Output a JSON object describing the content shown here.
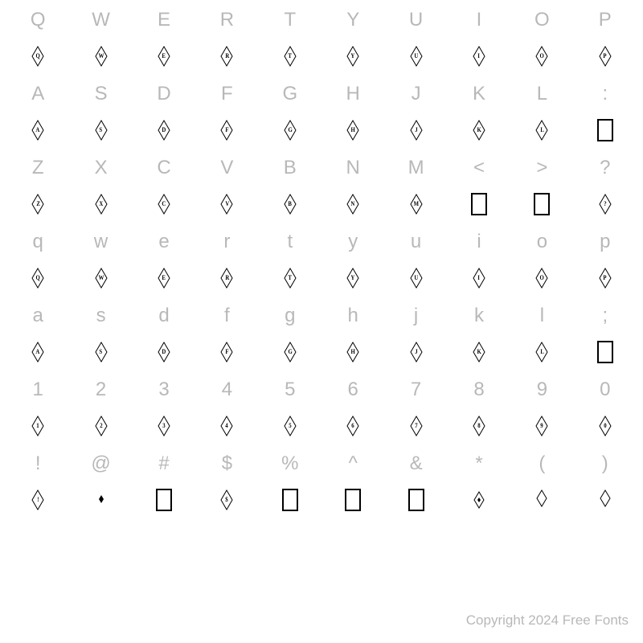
{
  "copyright": "Copyright 2024 Free Fonts",
  "glyph_font_letter_color": "#000000",
  "label_color": "#b8b8b8",
  "background": "#ffffff",
  "rows": [
    {
      "labels": [
        "Q",
        "W",
        "E",
        "R",
        "T",
        "Y",
        "U",
        "I",
        "O",
        "P"
      ],
      "glyphs": [
        {
          "t": "d",
          "l": "Q"
        },
        {
          "t": "d",
          "l": "W"
        },
        {
          "t": "d",
          "l": "E"
        },
        {
          "t": "d",
          "l": "R"
        },
        {
          "t": "d",
          "l": "T"
        },
        {
          "t": "d",
          "l": "Y"
        },
        {
          "t": "d",
          "l": "U"
        },
        {
          "t": "d",
          "l": "I"
        },
        {
          "t": "d",
          "l": "O"
        },
        {
          "t": "d",
          "l": "P"
        }
      ]
    },
    {
      "labels": [
        "A",
        "S",
        "D",
        "F",
        "G",
        "H",
        "J",
        "K",
        "L",
        ":"
      ],
      "glyphs": [
        {
          "t": "d",
          "l": "A"
        },
        {
          "t": "d",
          "l": "S"
        },
        {
          "t": "d",
          "l": "D"
        },
        {
          "t": "d",
          "l": "F"
        },
        {
          "t": "d",
          "l": "G"
        },
        {
          "t": "d",
          "l": "H"
        },
        {
          "t": "d",
          "l": "J"
        },
        {
          "t": "d",
          "l": "K"
        },
        {
          "t": "d",
          "l": "L"
        },
        {
          "t": "box"
        }
      ]
    },
    {
      "labels": [
        "Z",
        "X",
        "C",
        "V",
        "B",
        "N",
        "M",
        "<",
        ">",
        "?"
      ],
      "glyphs": [
        {
          "t": "d",
          "l": "Z"
        },
        {
          "t": "d",
          "l": "X"
        },
        {
          "t": "d",
          "l": "C"
        },
        {
          "t": "d",
          "l": "V"
        },
        {
          "t": "d",
          "l": "B"
        },
        {
          "t": "d",
          "l": "N"
        },
        {
          "t": "d",
          "l": "M"
        },
        {
          "t": "box"
        },
        {
          "t": "box"
        },
        {
          "t": "d",
          "l": "?"
        }
      ]
    },
    {
      "labels": [
        "q",
        "w",
        "e",
        "r",
        "t",
        "y",
        "u",
        "i",
        "o",
        "p"
      ],
      "glyphs": [
        {
          "t": "d",
          "l": "Q"
        },
        {
          "t": "d",
          "l": "W"
        },
        {
          "t": "d",
          "l": "E"
        },
        {
          "t": "d",
          "l": "R"
        },
        {
          "t": "d",
          "l": "T"
        },
        {
          "t": "d",
          "l": "Y"
        },
        {
          "t": "d",
          "l": "U"
        },
        {
          "t": "d",
          "l": "I"
        },
        {
          "t": "d",
          "l": "O"
        },
        {
          "t": "d",
          "l": "P"
        }
      ]
    },
    {
      "labels": [
        "a",
        "s",
        "d",
        "f",
        "g",
        "h",
        "j",
        "k",
        "l",
        ";"
      ],
      "glyphs": [
        {
          "t": "d",
          "l": "A"
        },
        {
          "t": "d",
          "l": "S"
        },
        {
          "t": "d",
          "l": "D"
        },
        {
          "t": "d",
          "l": "F"
        },
        {
          "t": "d",
          "l": "G"
        },
        {
          "t": "d",
          "l": "H"
        },
        {
          "t": "d",
          "l": "J"
        },
        {
          "t": "d",
          "l": "K"
        },
        {
          "t": "d",
          "l": "L"
        },
        {
          "t": "box"
        }
      ]
    },
    {
      "labels": [
        "1",
        "2",
        "3",
        "4",
        "5",
        "6",
        "7",
        "8",
        "9",
        "0"
      ],
      "glyphs": [
        {
          "t": "d",
          "l": "1"
        },
        {
          "t": "d",
          "l": "2"
        },
        {
          "t": "d",
          "l": "3"
        },
        {
          "t": "d",
          "l": "4"
        },
        {
          "t": "d",
          "l": "5"
        },
        {
          "t": "d",
          "l": "6"
        },
        {
          "t": "d",
          "l": "7"
        },
        {
          "t": "d",
          "l": "8"
        },
        {
          "t": "d",
          "l": "9"
        },
        {
          "t": "d",
          "l": "0"
        }
      ]
    },
    {
      "labels": [
        "!",
        "@",
        "#",
        "$",
        "%",
        "^",
        "&",
        "*",
        "(",
        ")"
      ],
      "glyphs": [
        {
          "t": "d",
          "l": "!"
        },
        {
          "t": "dot"
        },
        {
          "t": "box"
        },
        {
          "t": "d",
          "l": "$"
        },
        {
          "t": "box"
        },
        {
          "t": "box"
        },
        {
          "t": "box"
        },
        {
          "t": "sdot"
        },
        {
          "t": "od"
        },
        {
          "t": "od"
        }
      ]
    }
  ]
}
